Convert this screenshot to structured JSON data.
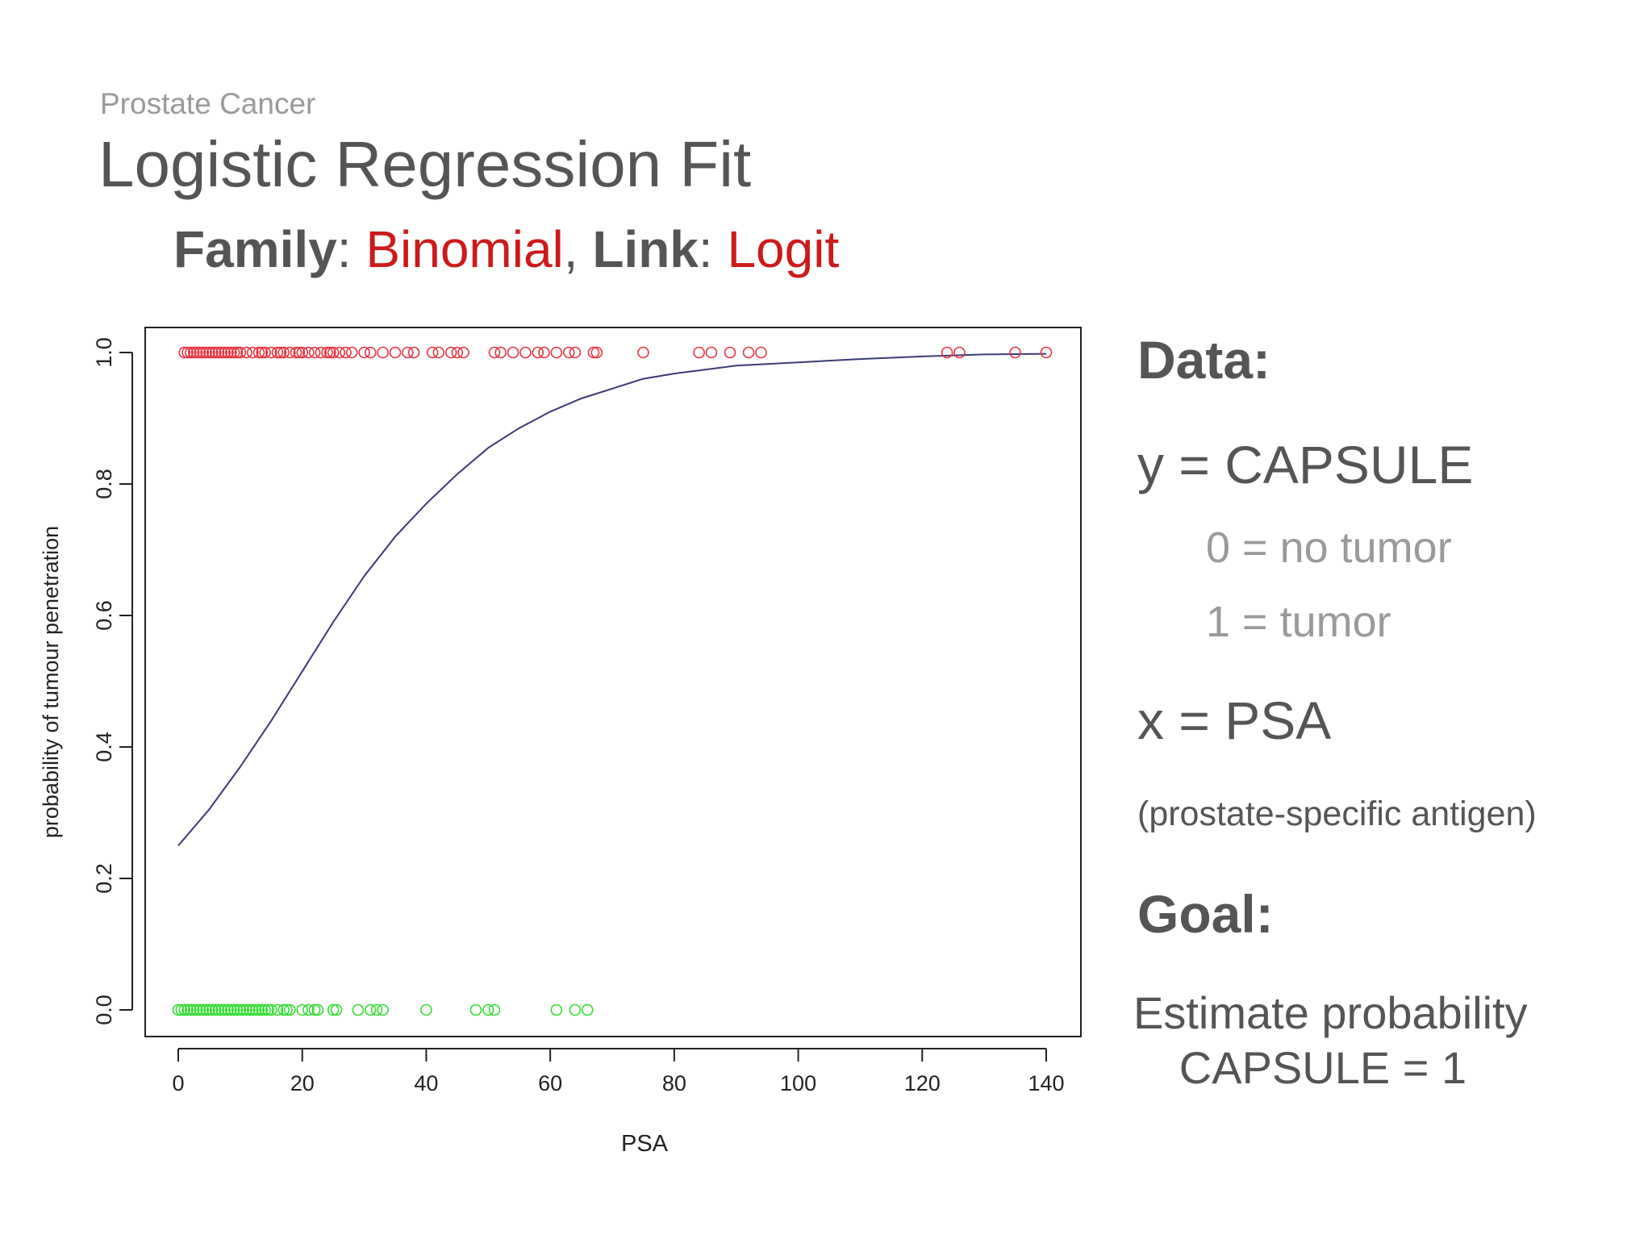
{
  "header": {
    "kicker": "Prostate Cancer",
    "title": "Logistic Regression Fit",
    "family_key": "Family",
    "family_value": "Binomial",
    "link_key": "Link",
    "link_value": "Logit",
    "colon": ": ",
    "comma": ", "
  },
  "side_panel": {
    "data_heading": "Data:",
    "y_def": "y = CAPSULE",
    "y0": "0 = no tumor",
    "y1": "1 = tumor",
    "x_def": "x = PSA",
    "x_note": "(prostate-specific antigen)",
    "goal_heading": "Goal:",
    "goal_line1": "Estimate probability",
    "goal_line2": "CAPSULE = 1"
  },
  "colors": {
    "text": "#555555",
    "accent_red": "#cc1a1a",
    "muted": "#9a9a9a",
    "points_y1": "#e8333f",
    "points_y0": "#33dd33",
    "curve": "#3a3a78"
  },
  "chart_data": {
    "type": "scatter",
    "title": "",
    "xlabel": "PSA",
    "ylabel": "probability of tumour penetration",
    "xlim": [
      0,
      140
    ],
    "ylim": [
      0,
      1
    ],
    "x_ticks": [
      0,
      20,
      40,
      60,
      80,
      100,
      120,
      140
    ],
    "y_ticks": [
      "0.0",
      "0.2",
      "0.4",
      "0.6",
      "0.8",
      "1.0"
    ],
    "grid": false,
    "series": [
      {
        "color": "#e8333f",
        "marker": "open-circle",
        "points": [
          [
            1,
            1
          ],
          [
            1.5,
            1
          ],
          [
            2,
            1
          ],
          [
            2.5,
            1
          ],
          [
            3,
            1
          ],
          [
            3.5,
            1
          ],
          [
            4,
            1
          ],
          [
            4.5,
            1
          ],
          [
            5,
            1
          ],
          [
            5.5,
            1
          ],
          [
            6,
            1
          ],
          [
            6.5,
            1
          ],
          [
            7,
            1
          ],
          [
            7.5,
            1
          ],
          [
            8,
            1
          ],
          [
            8.5,
            1
          ],
          [
            9,
            1
          ],
          [
            9.5,
            1
          ],
          [
            10,
            1
          ],
          [
            11,
            1
          ],
          [
            12,
            1
          ],
          [
            13,
            1
          ],
          [
            13.5,
            1
          ],
          [
            14,
            1
          ],
          [
            15,
            1
          ],
          [
            16,
            1
          ],
          [
            16.5,
            1
          ],
          [
            17,
            1
          ],
          [
            18,
            1
          ],
          [
            19,
            1
          ],
          [
            19.5,
            1
          ],
          [
            20,
            1
          ],
          [
            21,
            1
          ],
          [
            22,
            1
          ],
          [
            23,
            1
          ],
          [
            24,
            1
          ],
          [
            24.5,
            1
          ],
          [
            25,
            1
          ],
          [
            26,
            1
          ],
          [
            27,
            1
          ],
          [
            28,
            1
          ],
          [
            30,
            1
          ],
          [
            31,
            1
          ],
          [
            33,
            1
          ],
          [
            35,
            1
          ],
          [
            37,
            1
          ],
          [
            38,
            1
          ],
          [
            41,
            1
          ],
          [
            42,
            1
          ],
          [
            44,
            1
          ],
          [
            45,
            1
          ],
          [
            46,
            1
          ],
          [
            51,
            1
          ],
          [
            52,
            1
          ],
          [
            54,
            1
          ],
          [
            56,
            1
          ],
          [
            58,
            1
          ],
          [
            59,
            1
          ],
          [
            61,
            1
          ],
          [
            63,
            1
          ],
          [
            64,
            1
          ],
          [
            67,
            1
          ],
          [
            67.5,
            1
          ],
          [
            75,
            1
          ],
          [
            84,
            1
          ],
          [
            86,
            1
          ],
          [
            89,
            1
          ],
          [
            92,
            1
          ],
          [
            94,
            1
          ],
          [
            124,
            1
          ],
          [
            126,
            1
          ],
          [
            135,
            1
          ],
          [
            140,
            1
          ]
        ]
      },
      {
        "color": "#33dd33",
        "marker": "open-circle",
        "points": [
          [
            0,
            0
          ],
          [
            0.5,
            0
          ],
          [
            1,
            0
          ],
          [
            1.5,
            0
          ],
          [
            2,
            0
          ],
          [
            2.5,
            0
          ],
          [
            3,
            0
          ],
          [
            3.5,
            0
          ],
          [
            4,
            0
          ],
          [
            4.5,
            0
          ],
          [
            5,
            0
          ],
          [
            5.5,
            0
          ],
          [
            6,
            0
          ],
          [
            6.5,
            0
          ],
          [
            7,
            0
          ],
          [
            7.5,
            0
          ],
          [
            8,
            0
          ],
          [
            8.5,
            0
          ],
          [
            9,
            0
          ],
          [
            9.5,
            0
          ],
          [
            10,
            0
          ],
          [
            10.5,
            0
          ],
          [
            11,
            0
          ],
          [
            11.5,
            0
          ],
          [
            12,
            0
          ],
          [
            12.5,
            0
          ],
          [
            13,
            0
          ],
          [
            13.5,
            0
          ],
          [
            14,
            0
          ],
          [
            14.5,
            0
          ],
          [
            15,
            0
          ],
          [
            16,
            0
          ],
          [
            17,
            0
          ],
          [
            17.5,
            0
          ],
          [
            18,
            0
          ],
          [
            20,
            0
          ],
          [
            21,
            0
          ],
          [
            22,
            0
          ],
          [
            22.5,
            0
          ],
          [
            25,
            0
          ],
          [
            25.5,
            0
          ],
          [
            29,
            0
          ],
          [
            31,
            0
          ],
          [
            32,
            0
          ],
          [
            33,
            0
          ],
          [
            40,
            0
          ],
          [
            48,
            0
          ],
          [
            50,
            0
          ],
          [
            51,
            0
          ],
          [
            61,
            0
          ],
          [
            64,
            0
          ],
          [
            66,
            0
          ]
        ]
      }
    ],
    "fitted_curve": {
      "color": "#3a3a78",
      "model": "logistic",
      "points": [
        [
          0,
          0.25
        ],
        [
          5,
          0.305
        ],
        [
          10,
          0.37
        ],
        [
          15,
          0.44
        ],
        [
          20,
          0.515
        ],
        [
          25,
          0.59
        ],
        [
          30,
          0.66
        ],
        [
          35,
          0.72
        ],
        [
          40,
          0.77
        ],
        [
          45,
          0.815
        ],
        [
          50,
          0.855
        ],
        [
          55,
          0.885
        ],
        [
          60,
          0.91
        ],
        [
          65,
          0.93
        ],
        [
          70,
          0.945
        ],
        [
          75,
          0.96
        ],
        [
          80,
          0.968
        ],
        [
          90,
          0.98
        ],
        [
          100,
          0.985
        ],
        [
          110,
          0.99
        ],
        [
          120,
          0.994
        ],
        [
          130,
          0.997
        ],
        [
          140,
          0.998
        ]
      ]
    }
  }
}
